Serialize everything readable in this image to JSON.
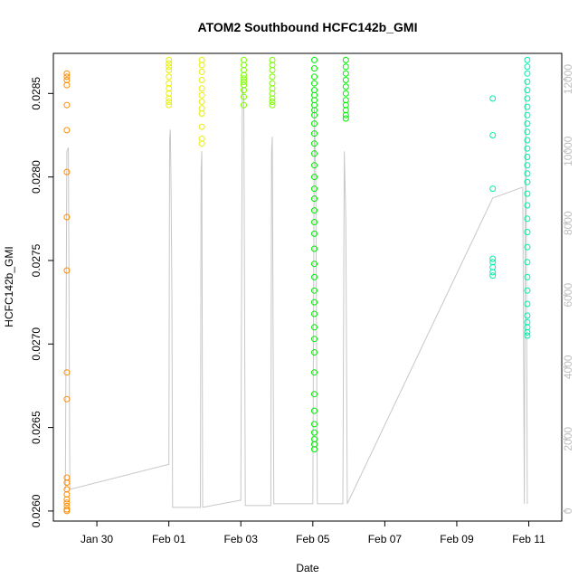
{
  "chart_data": {
    "type": "scatter",
    "title": "ATOM2 Southbound HCFC142b_GMI",
    "xlabel": "Date",
    "ylabel": "HCFC142b_GMI",
    "x_ticks": [
      "Jan 30",
      "Feb 01",
      "Feb 03",
      "Feb 05",
      "Feb 07",
      "Feb 09",
      "Feb 11"
    ],
    "y_ticks": [
      "0.0260",
      "0.0265",
      "0.0270",
      "0.0275",
      "0.0280",
      "0.0285"
    ],
    "y2_ticks": [
      "0",
      "2000",
      "4000",
      "6000",
      "8000",
      "10000",
      "12000"
    ],
    "xlim": [
      "2016-01-28T19:00",
      "2016-02-11T22:00"
    ],
    "ylim": [
      0.02594,
      0.02874
    ],
    "y2lim": [
      -280,
      12720
    ],
    "secondary_axis_color": "#bebebe",
    "series": [
      {
        "color": "#ff8c00",
        "points": [
          [
            "2016-01-29T04:00",
            0.02862
          ],
          [
            "2016-01-29T04:00",
            0.0286
          ],
          [
            "2016-01-29T04:00",
            0.02858
          ],
          [
            "2016-01-29T04:00",
            0.02855
          ],
          [
            "2016-01-29T04:00",
            0.02843
          ],
          [
            "2016-01-29T04:00",
            0.02828
          ],
          [
            "2016-01-29T04:00",
            0.02803
          ],
          [
            "2016-01-29T04:00",
            0.02776
          ],
          [
            "2016-01-29T04:00",
            0.02744
          ],
          [
            "2016-01-29T04:00",
            0.02683
          ],
          [
            "2016-01-29T04:00",
            0.02667
          ],
          [
            "2016-01-29T04:00",
            0.0262
          ],
          [
            "2016-01-29T04:00",
            0.02617
          ],
          [
            "2016-01-29T04:00",
            0.02613
          ],
          [
            "2016-01-29T04:00",
            0.0261
          ],
          [
            "2016-01-29T04:00",
            0.02607
          ],
          [
            "2016-01-29T04:00",
            0.02605
          ],
          [
            "2016-01-29T04:00",
            0.02603
          ],
          [
            "2016-01-29T04:00",
            0.02601
          ],
          [
            "2016-01-29T04:00",
            0.026
          ]
        ]
      },
      {
        "color": "#e8f000",
        "points": [
          [
            "2016-02-01T00:00",
            0.0287
          ],
          [
            "2016-02-01T00:00",
            0.02868
          ],
          [
            "2016-02-01T00:00",
            0.02866
          ],
          [
            "2016-02-01T00:00",
            0.02864
          ],
          [
            "2016-02-01T00:00",
            0.0286
          ],
          [
            "2016-02-01T00:00",
            0.02856
          ],
          [
            "2016-02-01T00:00",
            0.02853
          ],
          [
            "2016-02-01T00:00",
            0.0285
          ],
          [
            "2016-02-01T00:00",
            0.02847
          ],
          [
            "2016-02-01T00:00",
            0.02845
          ],
          [
            "2016-02-01T00:00",
            0.02843
          ],
          [
            "2016-02-01T22:00",
            0.0287
          ],
          [
            "2016-02-01T22:00",
            0.02867
          ],
          [
            "2016-02-01T22:00",
            0.02863
          ],
          [
            "2016-02-01T22:00",
            0.02858
          ],
          [
            "2016-02-01T22:00",
            0.02853
          ],
          [
            "2016-02-01T22:00",
            0.02849
          ],
          [
            "2016-02-01T22:00",
            0.02845
          ],
          [
            "2016-02-01T22:00",
            0.02841
          ],
          [
            "2016-02-01T22:00",
            0.02838
          ],
          [
            "2016-02-01T22:00",
            0.0283
          ],
          [
            "2016-02-01T22:00",
            0.02823
          ],
          [
            "2016-02-01T22:00",
            0.0282
          ]
        ]
      },
      {
        "color": "#7cfc00",
        "points": [
          [
            "2016-02-03T02:00",
            0.0287
          ],
          [
            "2016-02-03T02:00",
            0.02867
          ],
          [
            "2016-02-03T02:00",
            0.02864
          ],
          [
            "2016-02-03T02:00",
            0.02861
          ],
          [
            "2016-02-03T02:00",
            0.02859
          ],
          [
            "2016-02-03T02:00",
            0.02857
          ],
          [
            "2016-02-03T02:00",
            0.02855
          ],
          [
            "2016-02-03T02:00",
            0.02852
          ],
          [
            "2016-02-03T02:00",
            0.02848
          ],
          [
            "2016-02-03T02:00",
            0.02843
          ],
          [
            "2016-02-03T21:00",
            0.0287
          ],
          [
            "2016-02-03T21:00",
            0.02867
          ],
          [
            "2016-02-03T21:00",
            0.02864
          ],
          [
            "2016-02-03T21:00",
            0.0286
          ],
          [
            "2016-02-03T21:00",
            0.02856
          ],
          [
            "2016-02-03T21:00",
            0.02853
          ],
          [
            "2016-02-03T21:00",
            0.0285
          ],
          [
            "2016-02-03T21:00",
            0.02847
          ],
          [
            "2016-02-03T21:00",
            0.02845
          ],
          [
            "2016-02-03T21:00",
            0.02843
          ]
        ]
      },
      {
        "color": "#00ee00",
        "points": [
          [
            "2016-02-05T01:00",
            0.0287
          ],
          [
            "2016-02-05T01:00",
            0.02865
          ],
          [
            "2016-02-05T01:00",
            0.0286
          ],
          [
            "2016-02-05T01:00",
            0.02856
          ],
          [
            "2016-02-05T01:00",
            0.02852
          ],
          [
            "2016-02-05T01:00",
            0.02849
          ],
          [
            "2016-02-05T01:00",
            0.02846
          ],
          [
            "2016-02-05T01:00",
            0.02843
          ],
          [
            "2016-02-05T01:00",
            0.0284
          ],
          [
            "2016-02-05T01:00",
            0.02837
          ],
          [
            "2016-02-05T01:00",
            0.02832
          ],
          [
            "2016-02-05T01:00",
            0.02826
          ],
          [
            "2016-02-05T01:00",
            0.0282
          ],
          [
            "2016-02-05T01:00",
            0.02814
          ],
          [
            "2016-02-05T01:00",
            0.02807
          ],
          [
            "2016-02-05T01:00",
            0.028
          ],
          [
            "2016-02-05T01:00",
            0.02793
          ],
          [
            "2016-02-05T01:00",
            0.02787
          ],
          [
            "2016-02-05T01:00",
            0.0278
          ],
          [
            "2016-02-05T01:00",
            0.02773
          ],
          [
            "2016-02-05T01:00",
            0.02766
          ],
          [
            "2016-02-05T01:00",
            0.02757
          ],
          [
            "2016-02-05T01:00",
            0.02748
          ],
          [
            "2016-02-05T01:00",
            0.0274
          ],
          [
            "2016-02-05T01:00",
            0.02732
          ],
          [
            "2016-02-05T01:00",
            0.02725
          ],
          [
            "2016-02-05T01:00",
            0.02718
          ],
          [
            "2016-02-05T01:00",
            0.0271
          ],
          [
            "2016-02-05T01:00",
            0.02703
          ],
          [
            "2016-02-05T01:00",
            0.02695
          ],
          [
            "2016-02-05T01:00",
            0.02683
          ],
          [
            "2016-02-05T01:00",
            0.0267
          ],
          [
            "2016-02-05T01:00",
            0.0266
          ],
          [
            "2016-02-05T01:00",
            0.02652
          ],
          [
            "2016-02-05T01:00",
            0.02647
          ],
          [
            "2016-02-05T01:00",
            0.02643
          ],
          [
            "2016-02-05T01:00",
            0.0264
          ],
          [
            "2016-02-05T01:00",
            0.02637
          ],
          [
            "2016-02-05T22:00",
            0.0287
          ],
          [
            "2016-02-05T22:00",
            0.02866
          ],
          [
            "2016-02-05T22:00",
            0.02862
          ],
          [
            "2016-02-05T22:00",
            0.02858
          ],
          [
            "2016-02-05T22:00",
            0.02854
          ],
          [
            "2016-02-05T22:00",
            0.0285
          ],
          [
            "2016-02-05T22:00",
            0.02846
          ],
          [
            "2016-02-05T22:00",
            0.02843
          ],
          [
            "2016-02-05T22:00",
            0.0284
          ],
          [
            "2016-02-05T22:00",
            0.02837
          ],
          [
            "2016-02-05T22:00",
            0.02835
          ]
        ]
      },
      {
        "color": "#00eeaa",
        "points": [
          [
            "2016-02-10T00:00",
            0.02847
          ],
          [
            "2016-02-10T00:00",
            0.02825
          ],
          [
            "2016-02-10T00:00",
            0.02793
          ],
          [
            "2016-02-10T00:00",
            0.02751
          ],
          [
            "2016-02-10T00:00",
            0.02749
          ],
          [
            "2016-02-10T00:00",
            0.02746
          ],
          [
            "2016-02-10T00:00",
            0.02743
          ],
          [
            "2016-02-10T00:00",
            0.02741
          ],
          [
            "2016-02-10T23:00",
            0.0287
          ],
          [
            "2016-02-10T23:00",
            0.02866
          ],
          [
            "2016-02-10T23:00",
            0.02862
          ],
          [
            "2016-02-10T23:00",
            0.02857
          ],
          [
            "2016-02-10T23:00",
            0.02852
          ],
          [
            "2016-02-10T23:00",
            0.02847
          ],
          [
            "2016-02-10T23:00",
            0.02842
          ],
          [
            "2016-02-10T23:00",
            0.02837
          ],
          [
            "2016-02-10T23:00",
            0.02832
          ],
          [
            "2016-02-10T23:00",
            0.02827
          ],
          [
            "2016-02-10T23:00",
            0.02822
          ],
          [
            "2016-02-10T23:00",
            0.02817
          ],
          [
            "2016-02-10T23:00",
            0.02812
          ],
          [
            "2016-02-10T23:00",
            0.02807
          ],
          [
            "2016-02-10T23:00",
            0.02802
          ],
          [
            "2016-02-10T23:00",
            0.02797
          ],
          [
            "2016-02-10T23:00",
            0.0279
          ],
          [
            "2016-02-10T23:00",
            0.02783
          ],
          [
            "2016-02-10T23:00",
            0.02775
          ],
          [
            "2016-02-10T23:00",
            0.02767
          ],
          [
            "2016-02-10T23:00",
            0.02758
          ],
          [
            "2016-02-10T23:00",
            0.02749
          ],
          [
            "2016-02-10T23:00",
            0.0274
          ],
          [
            "2016-02-10T23:00",
            0.02732
          ],
          [
            "2016-02-10T23:00",
            0.02724
          ],
          [
            "2016-02-10T23:00",
            0.02717
          ],
          [
            "2016-02-10T23:00",
            0.02713
          ],
          [
            "2016-02-10T23:00",
            0.0271
          ],
          [
            "2016-02-10T23:00",
            0.02707
          ],
          [
            "2016-02-10T23:00",
            0.02705
          ]
        ]
      }
    ],
    "altitude_line": {
      "color": "#c8c8c8",
      "points": [
        [
          "2016-01-29T03:00",
          600
        ],
        [
          "2016-01-29T04:00",
          10000
        ],
        [
          "2016-01-29T05:00",
          10100
        ],
        [
          "2016-01-29T06:00",
          600
        ],
        [
          "2016-02-01T00:00",
          1300
        ],
        [
          "2016-02-01T00:30",
          10300
        ],
        [
          "2016-02-01T01:00",
          10600
        ],
        [
          "2016-02-01T01:30",
          9000
        ],
        [
          "2016-02-01T02:00",
          6100
        ],
        [
          "2016-02-01T02:30",
          100
        ],
        [
          "2016-02-01T21:00",
          100
        ],
        [
          "2016-02-01T21:30",
          9500
        ],
        [
          "2016-02-01T22:00",
          10000
        ],
        [
          "2016-02-01T22:30",
          100
        ],
        [
          "2016-02-03T00:00",
          300
        ],
        [
          "2016-02-03T01:00",
          11800
        ],
        [
          "2016-02-03T02:00",
          11500
        ],
        [
          "2016-02-03T03:00",
          150
        ],
        [
          "2016-02-03T20:00",
          150
        ],
        [
          "2016-02-03T20:30",
          10000
        ],
        [
          "2016-02-03T21:00",
          10400
        ],
        [
          "2016-02-03T22:00",
          200
        ],
        [
          "2016-02-05T00:00",
          200
        ],
        [
          "2016-02-05T01:00",
          11200
        ],
        [
          "2016-02-05T02:00",
          9100
        ],
        [
          "2016-02-05T03:00",
          200
        ],
        [
          "2016-02-05T20:00",
          200
        ],
        [
          "2016-02-05T21:00",
          10000
        ],
        [
          "2016-02-05T22:00",
          8100
        ],
        [
          "2016-02-05T23:00",
          200
        ],
        [
          "2016-02-10T00:00",
          8700
        ],
        [
          "2016-02-10T20:00",
          9000
        ],
        [
          "2016-02-10T21:00",
          200
        ],
        [
          "2016-02-10T22:00",
          12000
        ],
        [
          "2016-02-10T23:00",
          200
        ]
      ]
    }
  }
}
